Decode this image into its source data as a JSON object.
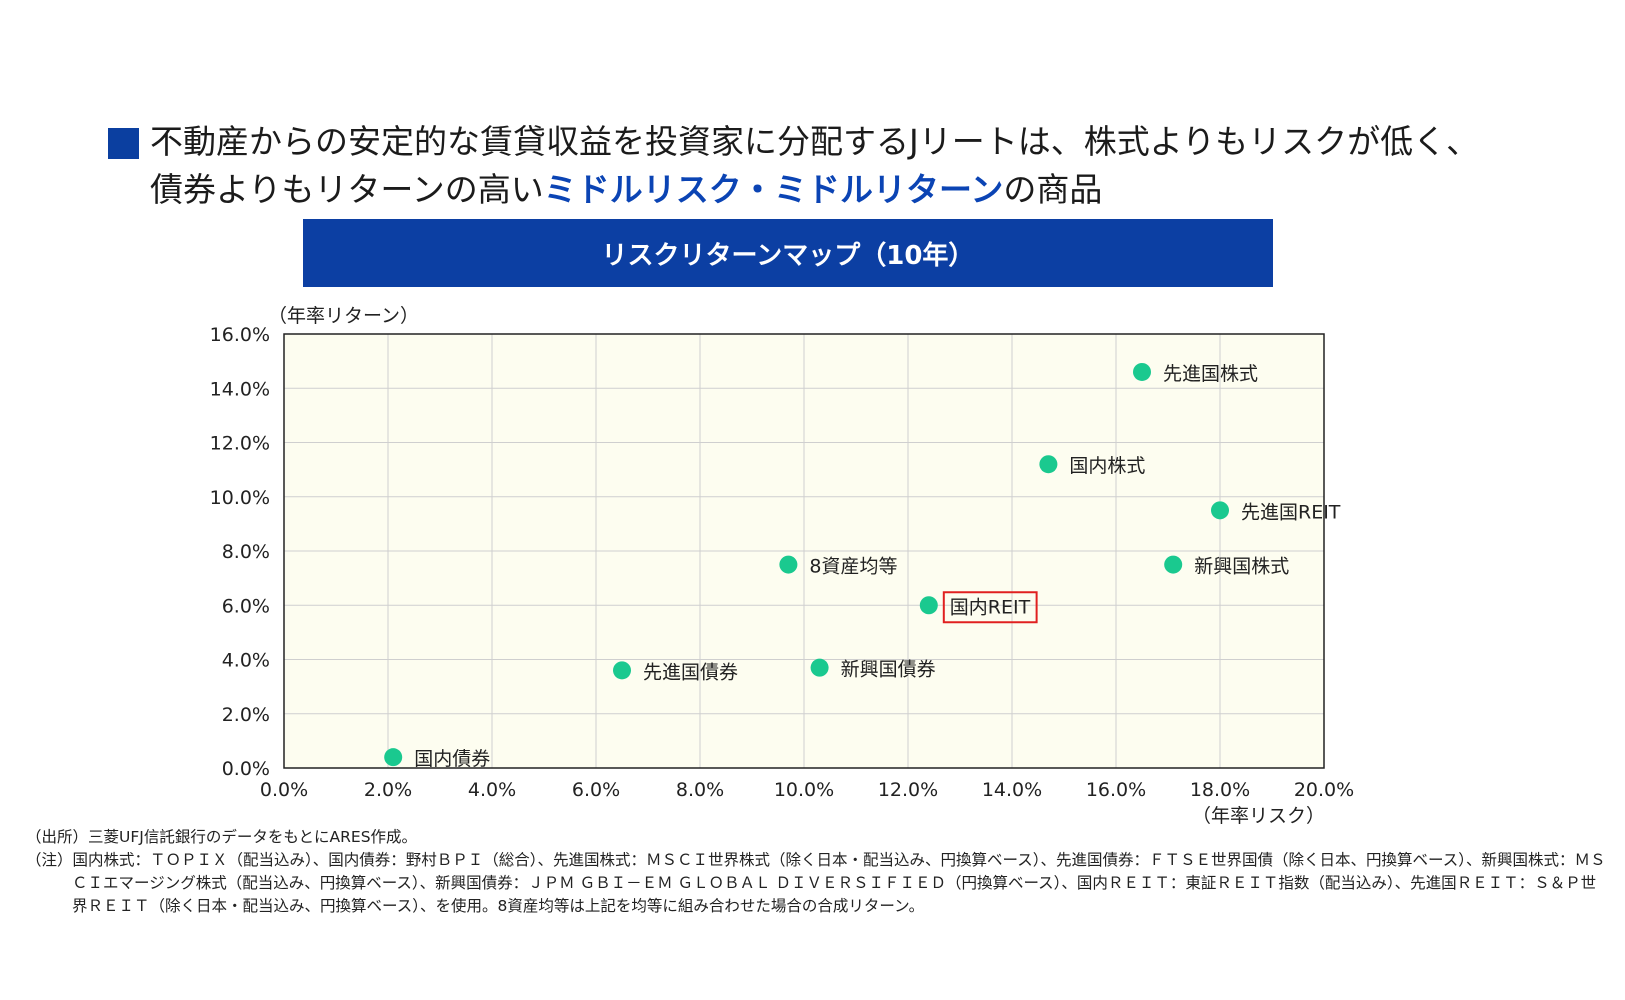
{
  "headline": {
    "line1": "不動産からの安定的な賃貸収益を投資家に分配するJリートは、株式よりもリスクが低く、",
    "line2_before": "債券よりもリターンの高い",
    "line2_highlight": "ミドルリスク・ミドルリターン",
    "line2_after": "の商品"
  },
  "banner_title": "リスクリターンマップ（10年）",
  "colors": {
    "bullet": "#0b3fa0",
    "banner": "#0c3fa3",
    "highlight_text": "#0b44b4",
    "plot_background": "#fdfdf0",
    "grid": "#cfcfcf",
    "point": "#1ac98f",
    "emphasis_box": "#e02020"
  },
  "chart_data": {
    "type": "scatter",
    "title": "リスクリターンマップ（10年）",
    "xlabel": "（年率リスク）",
    "ylabel": "（年率リターン）",
    "xlim": [
      0,
      20
    ],
    "ylim": [
      0,
      16
    ],
    "x_ticks": [
      "0.0%",
      "2.0%",
      "4.0%",
      "6.0%",
      "8.0%",
      "10.0%",
      "12.0%",
      "14.0%",
      "16.0%",
      "18.0%",
      "20.0%"
    ],
    "y_ticks": [
      "0.0%",
      "2.0%",
      "4.0%",
      "6.0%",
      "8.0%",
      "10.0%",
      "12.0%",
      "14.0%",
      "16.0%"
    ],
    "grid": true,
    "points": [
      {
        "label": "先進国株式",
        "x": 16.5,
        "y": 14.6,
        "highlight": false
      },
      {
        "label": "国内株式",
        "x": 14.7,
        "y": 11.2,
        "highlight": false
      },
      {
        "label": "先進国REIT",
        "x": 18.0,
        "y": 9.5,
        "highlight": false
      },
      {
        "label": "新興国株式",
        "x": 17.1,
        "y": 7.5,
        "highlight": false
      },
      {
        "label": "8資産均等",
        "x": 9.7,
        "y": 7.5,
        "highlight": false
      },
      {
        "label": "国内REIT",
        "x": 12.4,
        "y": 6.0,
        "highlight": true
      },
      {
        "label": "新興国債券",
        "x": 10.3,
        "y": 3.7,
        "highlight": false
      },
      {
        "label": "先進国債券",
        "x": 6.5,
        "y": 3.6,
        "highlight": false
      },
      {
        "label": "国内債券",
        "x": 2.1,
        "y": 0.4,
        "highlight": false
      }
    ]
  },
  "source_line": "（出所）三菱UFJ信託銀行のデータをもとにARES作成。",
  "note": "（注）国内株式：ＴＯＰＩＸ（配当込み）、国内債券：野村ＢＰＩ（総合）、先進国株式：ＭＳＣＩ世界株式（除く日本・配当込み、円換算ベース）、先進国債券：ＦＴＳＥ世界国債（除く日本、円換算ベース）、新興国株式：ＭＳＣＩエマージング株式（配当込み、円換算ベース）、新興国債券：ＪＰＭ ＧＢＩ－ＥＭ ＧＬＯＢＡＬ ＤＩＶＥＲＳＩＦＩＥＤ（円換算ベース）、国内ＲＥＩＴ：東証ＲＥＩＴ指数（配当込み）、先進国ＲＥＩＴ：Ｓ＆Ｐ世界ＲＥＩＴ（除く日本・配当込み、円換算ベース）、を使用。8資産均等は上記を均等に組み合わせた場合の合成リターン。"
}
